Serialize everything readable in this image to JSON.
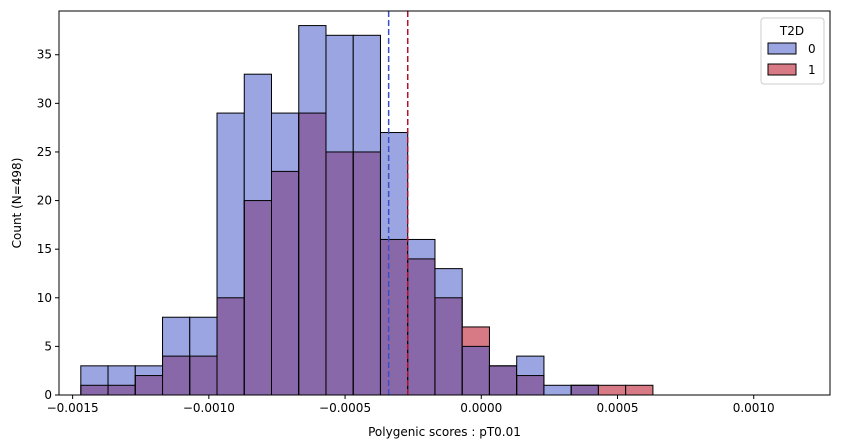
{
  "chart_data": {
    "type": "histogram",
    "title": "",
    "xlabel": "Polygenic scores : pT0.01",
    "ylabel": "Count (N=498)",
    "xlim": [
      -0.00155,
      0.00128
    ],
    "ylim": [
      0,
      39.5
    ],
    "xticks": [
      -0.0015,
      -0.001,
      -0.0005,
      0.0,
      0.0005,
      0.001
    ],
    "xtick_labels": [
      "−0.0015",
      "−0.0010",
      "−0.0005",
      "0.0000",
      "0.0005",
      "0.0010"
    ],
    "yticks": [
      0,
      5,
      10,
      15,
      20,
      25,
      30,
      35
    ],
    "ytick_labels": [
      "0",
      "5",
      "10",
      "15",
      "20",
      "25",
      "30",
      "35"
    ],
    "bin_start": -0.00147,
    "bin_width": 0.0001,
    "series": [
      {
        "name": "0",
        "color": "#9aa5e1",
        "values": [
          3,
          3,
          3,
          8,
          8,
          29,
          33,
          29,
          38,
          37,
          37,
          27,
          16,
          13,
          5,
          3,
          4,
          1,
          1,
          0,
          0
        ]
      },
      {
        "name": "1",
        "color": "#d77a86",
        "values": [
          1,
          1,
          2,
          4,
          4,
          10,
          20,
          23,
          29,
          25,
          25,
          16,
          14,
          10,
          7,
          3,
          2,
          0,
          1,
          1,
          1
        ]
      }
    ],
    "overlap_color": "#8868a8",
    "mean_lines": [
      {
        "series": "0",
        "x": -0.00034,
        "color": "#3a4fc4"
      },
      {
        "series": "1",
        "x": -0.00027,
        "color": "#b0102a"
      }
    ],
    "legend": {
      "title": "T2D",
      "position": "top-right",
      "entries": [
        "0",
        "1"
      ]
    }
  }
}
